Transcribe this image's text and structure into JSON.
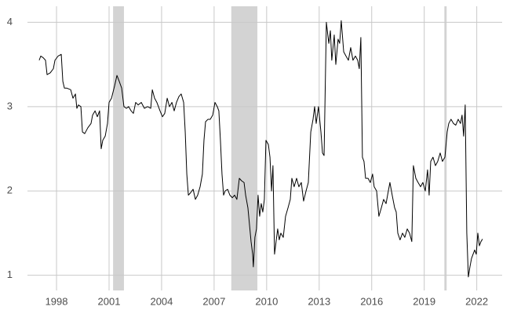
{
  "chart_data": {
    "type": "line",
    "color": "#000000",
    "grid": true,
    "shade_color": "#d3d3d3",
    "shaded_regions": [
      [
        2001.23,
        2001.85
      ],
      [
        2007.98,
        2009.47
      ],
      [
        2020.15,
        2020.28
      ]
    ],
    "xlim": [
      1996.34,
      2023.45
    ],
    "ylim": [
      0.82,
      4.19
    ],
    "xticks": [
      1998,
      2001,
      2004,
      2007,
      2010,
      2013,
      2016,
      2019,
      2022
    ],
    "yticks": [
      1,
      2,
      3,
      4
    ],
    "x": [
      1997.01,
      1997.1,
      1997.24,
      1997.37,
      1997.46,
      1997.64,
      1997.82,
      1997.91,
      1998.09,
      1998.27,
      1998.36,
      1998.45,
      1998.58,
      1998.81,
      1998.94,
      1999.08,
      1999.16,
      1999.25,
      1999.39,
      1999.48,
      1999.61,
      1999.79,
      1999.97,
      2000.06,
      2000.2,
      2000.33,
      2000.46,
      2000.55,
      2000.64,
      2000.78,
      2000.91,
      2001.0,
      2001.14,
      2001.32,
      2001.45,
      2001.58,
      2001.72,
      2001.85,
      2001.99,
      2002.12,
      2002.26,
      2002.39,
      2002.52,
      2002.66,
      2002.84,
      2003.02,
      2003.2,
      2003.38,
      2003.47,
      2003.6,
      2003.73,
      2003.91,
      2004.05,
      2004.18,
      2004.32,
      2004.45,
      2004.59,
      2004.72,
      2004.85,
      2004.99,
      2005.12,
      2005.26,
      2005.35,
      2005.44,
      2005.53,
      2005.66,
      2005.8,
      2005.93,
      2006.06,
      2006.2,
      2006.33,
      2006.42,
      2006.51,
      2006.65,
      2006.78,
      2006.92,
      2007.05,
      2007.18,
      2007.27,
      2007.36,
      2007.45,
      2007.54,
      2007.63,
      2007.77,
      2007.9,
      2008.04,
      2008.17,
      2008.3,
      2008.44,
      2008.57,
      2008.71,
      2008.8,
      2008.93,
      2009.02,
      2009.11,
      2009.2,
      2009.24,
      2009.33,
      2009.42,
      2009.51,
      2009.6,
      2009.69,
      2009.78,
      2009.87,
      2009.96,
      2010.1,
      2010.19,
      2010.28,
      2010.36,
      2010.45,
      2010.54,
      2010.63,
      2010.72,
      2010.81,
      2010.95,
      2011.08,
      2011.22,
      2011.35,
      2011.44,
      2011.57,
      2011.71,
      2011.84,
      2011.98,
      2012.11,
      2012.25,
      2012.38,
      2012.52,
      2012.65,
      2012.74,
      2012.83,
      2012.96,
      2013.1,
      2013.19,
      2013.28,
      2013.41,
      2013.55,
      2013.64,
      2013.72,
      2013.86,
      2013.95,
      2014.08,
      2014.17,
      2014.26,
      2014.4,
      2014.53,
      2014.67,
      2014.8,
      2014.93,
      2015.07,
      2015.2,
      2015.29,
      2015.38,
      2015.47,
      2015.56,
      2015.65,
      2015.79,
      2015.92,
      2016.05,
      2016.14,
      2016.28,
      2016.41,
      2016.55,
      2016.68,
      2016.82,
      2016.95,
      2017.04,
      2017.17,
      2017.31,
      2017.4,
      2017.49,
      2017.62,
      2017.76,
      2017.89,
      2018.03,
      2018.16,
      2018.29,
      2018.38,
      2018.52,
      2018.65,
      2018.79,
      2018.92,
      2019.06,
      2019.19,
      2019.28,
      2019.37,
      2019.5,
      2019.64,
      2019.77,
      2019.91,
      2020.04,
      2020.18,
      2020.31,
      2020.4,
      2020.53,
      2020.67,
      2020.8,
      2020.94,
      2021.07,
      2021.16,
      2021.25,
      2021.34,
      2021.43,
      2021.52,
      2021.61,
      2021.7,
      2021.79,
      2021.88,
      2021.97,
      2022.06,
      2022.15,
      2022.24,
      2022.33
    ],
    "values": [
      3.55,
      3.6,
      3.58,
      3.55,
      3.38,
      3.4,
      3.45,
      3.55,
      3.6,
      3.62,
      3.3,
      3.22,
      3.22,
      3.2,
      3.1,
      3.15,
      2.98,
      3.02,
      3.0,
      2.7,
      2.68,
      2.75,
      2.8,
      2.9,
      2.95,
      2.88,
      2.95,
      2.5,
      2.6,
      2.65,
      2.8,
      3.05,
      3.1,
      3.25,
      3.37,
      3.3,
      3.22,
      3.0,
      2.98,
      3.0,
      2.95,
      2.92,
      3.05,
      3.02,
      3.05,
      2.98,
      3.0,
      2.98,
      3.2,
      3.1,
      3.05,
      2.95,
      2.88,
      2.92,
      3.1,
      3.0,
      3.05,
      2.95,
      3.05,
      3.12,
      3.15,
      3.05,
      2.7,
      2.2,
      1.95,
      1.98,
      2.02,
      1.9,
      1.95,
      2.05,
      2.2,
      2.6,
      2.82,
      2.85,
      2.85,
      2.9,
      3.05,
      3.0,
      2.95,
      2.6,
      2.2,
      1.95,
      2.0,
      2.02,
      1.95,
      1.92,
      1.95,
      1.9,
      2.15,
      2.12,
      2.1,
      1.95,
      1.8,
      1.6,
      1.4,
      1.25,
      1.1,
      1.45,
      1.55,
      1.95,
      1.7,
      1.85,
      1.75,
      1.9,
      2.6,
      2.55,
      2.4,
      2.0,
      2.3,
      1.25,
      1.4,
      1.55,
      1.42,
      1.5,
      1.45,
      1.7,
      1.8,
      1.9,
      2.15,
      2.05,
      2.15,
      2.05,
      2.1,
      1.88,
      2.0,
      2.1,
      2.7,
      2.85,
      3.0,
      2.8,
      3.0,
      2.7,
      2.45,
      2.42,
      4.0,
      3.75,
      3.9,
      3.55,
      3.85,
      3.5,
      3.8,
      3.75,
      4.02,
      3.65,
      3.6,
      3.55,
      3.7,
      3.55,
      3.6,
      3.55,
      3.45,
      3.82,
      2.4,
      2.35,
      2.15,
      2.15,
      2.1,
      2.2,
      2.05,
      2.0,
      1.7,
      1.8,
      1.9,
      1.85,
      2.0,
      2.1,
      1.95,
      1.8,
      1.75,
      1.5,
      1.42,
      1.5,
      1.45,
      1.55,
      1.5,
      1.4,
      2.3,
      2.15,
      2.1,
      2.05,
      2.1,
      2.0,
      2.25,
      1.95,
      2.35,
      2.4,
      2.3,
      2.35,
      2.45,
      2.35,
      2.4,
      2.7,
      2.8,
      2.85,
      2.8,
      2.78,
      2.85,
      2.8,
      2.9,
      2.65,
      3.02,
      1.5,
      0.98,
      1.1,
      1.2,
      1.25,
      1.3,
      1.25,
      1.5,
      1.35,
      1.4,
      1.43
    ]
  }
}
